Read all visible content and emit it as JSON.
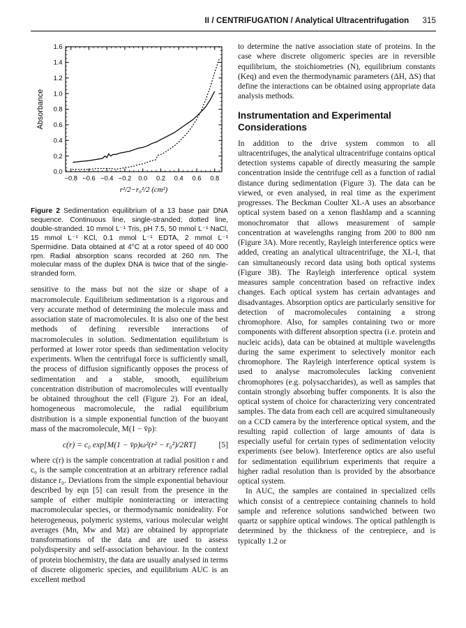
{
  "header": {
    "title": "II / CENTRIFUGATION / Analytical Ultracentrifugation",
    "page_number": "315"
  },
  "figure": {
    "caption_label": "Figure 2",
    "caption_text": "Sedimentation equilibrium of a 13 base pair DNA sequence. Continuous line, single-stranded; dotted line, double-stranded. 10 mmol L⁻¹ Tris, pH 7.5, 50 mmol L⁻¹ NaCl, 15 mmol L⁻¹ KCl, 0.1 mmol L⁻¹ EDTA, 2 mmol L⁻¹ Spermidine. Data obtained at 4°C at a rotor speed of 40 000 rpm. Radial absorption scans recorded at 260 nm. The molecular mass of the duplex DNA is twice that of the single-stranded form."
  },
  "chart_data": {
    "type": "line",
    "title": "",
    "xlabel": "r²/2−r₀²/2 (cm²)",
    "ylabel": "Absorbance",
    "xlim": [
      -0.86,
      0.88
    ],
    "ylim": [
      0,
      1.6
    ],
    "xticks": [
      -0.8,
      -0.6,
      -0.4,
      -0.2,
      0.0,
      0.2,
      0.4,
      0.6,
      0.8
    ],
    "yticks": [
      0.0,
      0.2,
      0.4,
      0.6,
      0.8,
      1.0,
      1.2,
      1.4,
      1.6
    ],
    "minor_tick_step": 0.05,
    "grid": false,
    "legend_position": "none",
    "line_color": "#000000",
    "series": [
      {
        "name": "single-stranded",
        "line_style": "solid",
        "x": [
          -0.78,
          -0.7,
          -0.6,
          -0.5,
          -0.45,
          -0.42,
          -0.4,
          -0.38,
          -0.36,
          -0.33,
          -0.3,
          -0.25,
          -0.2,
          -0.15,
          -0.1,
          -0.05,
          0.0,
          0.05,
          0.1,
          0.15,
          0.2,
          0.25,
          0.3,
          0.35,
          0.4,
          0.45,
          0.5,
          0.55,
          0.6,
          0.65,
          0.7,
          0.75,
          0.8
        ],
        "y": [
          0.12,
          0.13,
          0.14,
          0.16,
          0.17,
          0.2,
          0.18,
          0.23,
          0.2,
          0.22,
          0.22,
          0.24,
          0.25,
          0.26,
          0.28,
          0.3,
          0.31,
          0.33,
          0.36,
          0.38,
          0.41,
          0.44,
          0.47,
          0.5,
          0.54,
          0.58,
          0.62,
          0.66,
          0.71,
          0.77,
          0.83,
          0.92,
          1.03
        ]
      },
      {
        "name": "double-stranded",
        "line_style": "dotted",
        "x": [
          -0.78,
          -0.7,
          -0.6,
          -0.5,
          -0.4,
          -0.35,
          -0.3,
          -0.25,
          -0.2,
          -0.15,
          -0.1,
          -0.05,
          0.0,
          0.05,
          0.1,
          0.14,
          0.17,
          0.2,
          0.25,
          0.3,
          0.35,
          0.4,
          0.45,
          0.5,
          0.55,
          0.6,
          0.65,
          0.7,
          0.75,
          0.8,
          0.85
        ],
        "y": [
          0.03,
          0.03,
          0.03,
          0.04,
          0.04,
          0.04,
          0.03,
          0.04,
          0.05,
          0.06,
          0.07,
          0.09,
          0.1,
          0.12,
          0.14,
          0.15,
          0.21,
          0.22,
          0.25,
          0.29,
          0.33,
          0.38,
          0.44,
          0.5,
          0.58,
          0.67,
          0.78,
          0.92,
          1.08,
          1.27,
          1.44
        ]
      }
    ]
  },
  "left_column": {
    "para1": "sensitive to the mass but not the size or shape of a macromolecule. Equilibrium sedimentation is a rigorous and very accurate method of determining the molecule mass and association state of macromolecules. It is also one of the best methods of defining reversible interactions of macromolecules in solution. Sedimentation equilibrium is performed at lower rotor speeds than sedimentation velocity experiments. When the centrifugal force is sufficiently small, the process of diffusion significantly opposes the process of sedimentation and a stable, smooth, equilibrium concentration distribution of macromolecules will eventually be obtained throughout the cell (Figure 2). For an ideal, homogeneous macromolecule, the radial equilibrium distribution is a simple exponential function of the buoyant mass of the macromolecule, M(1 − v̄ρ):",
    "equation": "c(r) = c₀ exp[M(1 − v̄ρ)ω²(r² − r₀²)/2RT]",
    "equation_number": "[5]",
    "para2": "where c(r) is the sample concentration at radial position r and c₀ is the sample concentration at an arbitrary reference radial distance r₀. Deviations from the simple exponential behaviour described by eqn [5] can result from the presence in the sample of either multiple noninteracting or interacting macromolecular species, or thermodynamic nonideality. For heterogeneous, polymeric systems, various molecular weight averages (Mn, Mw and Mz) are obtained by appropriate transformations of the data and are used to assess polydispersity and self-association behaviour. In the context of protein biochemistry, the data are usually analysed in terms of discrete oligomeric species, and equilibrium AUC is an excellent method"
  },
  "right_column": {
    "para1": "to determine the native association state of proteins. In the case where discrete oligomeric species are in reversible equilibrium, the stoichiometries (N), equilibrium constants (Keq) and even the thermodynamic parameters (ΔH, ΔS) that define the interactions can be obtained using appropriate data analysis methods.",
    "heading": "Instrumentation and Experimental Considerations",
    "para2": "In addition to the drive system common to all ultracentrifuges, the analytical ultracentrifuge contains optical detection systems capable of directly measuring the sample concentration inside the centrifuge cell as a function of radial distance during sedimentation (Figure 3). The data can be viewed, or even analysed, in real time as the experiment progresses. The Beckman Coulter XL-A uses an absorbance optical system based on a xenon flashlamp and a scanning monochromator that allows measurement of sample concentration at wavelengths ranging from 200 to 800 nm (Figure 3A). More recently, Rayleigh interference optics were added, creating an analytical ultracentrifuge, the XL-I, that can simultaneously record data using both optical systems (Figure 3B). The Rayleigh interference optical system measures sample concentration based on refractive index changes. Each optical system has certain advantages and disadvantages. Absorption optics are particularly sensitive for detection of macromolecules containing a strong chromophore. Also, for samples containing two or more components with different absorption spectra (i.e. protein and nucleic acids), data can be obtained at multiple wavelengths during the same experiment to selectively monitor each chromophore. The Rayleigh interference optical system is used to analyse macromolecules lacking convenient chromophores (e.g. polysaccharides), as well as samples that contain strongly absorbing buffer components. It is also the optical system of choice for characterizing very concentrated samples. The data from each cell are acquired simultaneously on a CCD camera by the interference optical system, and the resulting rapid collection of large amounts of data is especially useful for certain types of sedimentation velocity experiments (see below). Interference optics are also useful for sedimentation equilibrium experiments that require a higher radial resolution than is provided by the absorbance optical system.",
    "para3": "In AUC, the samples are contained in specialized cells which consist of a centrepiece containing channels to hold sample and reference solutions sandwiched between two quartz or sapphire optical windows. The optical pathlength is determined by the thickness of the centrepiece, and is typically 1.2 or"
  }
}
